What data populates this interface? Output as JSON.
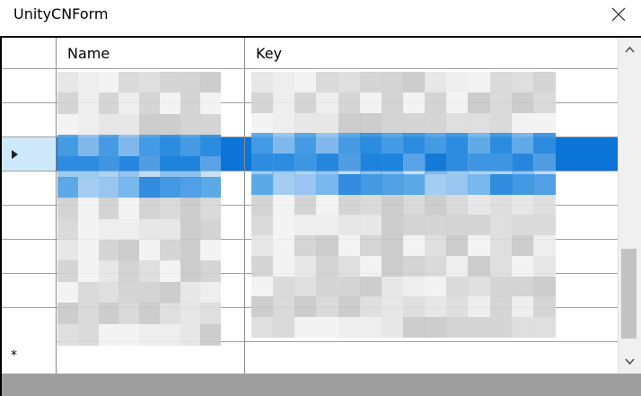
{
  "window": {
    "title": "UnityCNForm"
  },
  "grid": {
    "columns": [
      {
        "label": "Name"
      },
      {
        "label": "Key"
      }
    ],
    "selected_row_index": 2,
    "new_row_marker": "*",
    "row_count": 9
  },
  "colors": {
    "selection": "#0a74d8",
    "row_header_selected": "#cde8fb",
    "gridline": "#a0a0a0"
  },
  "icons": {
    "close": "close-icon",
    "selected_row": "current-row-arrow-icon",
    "scroll_up": "chevron-up-icon",
    "scroll_down": "chevron-down-icon"
  }
}
